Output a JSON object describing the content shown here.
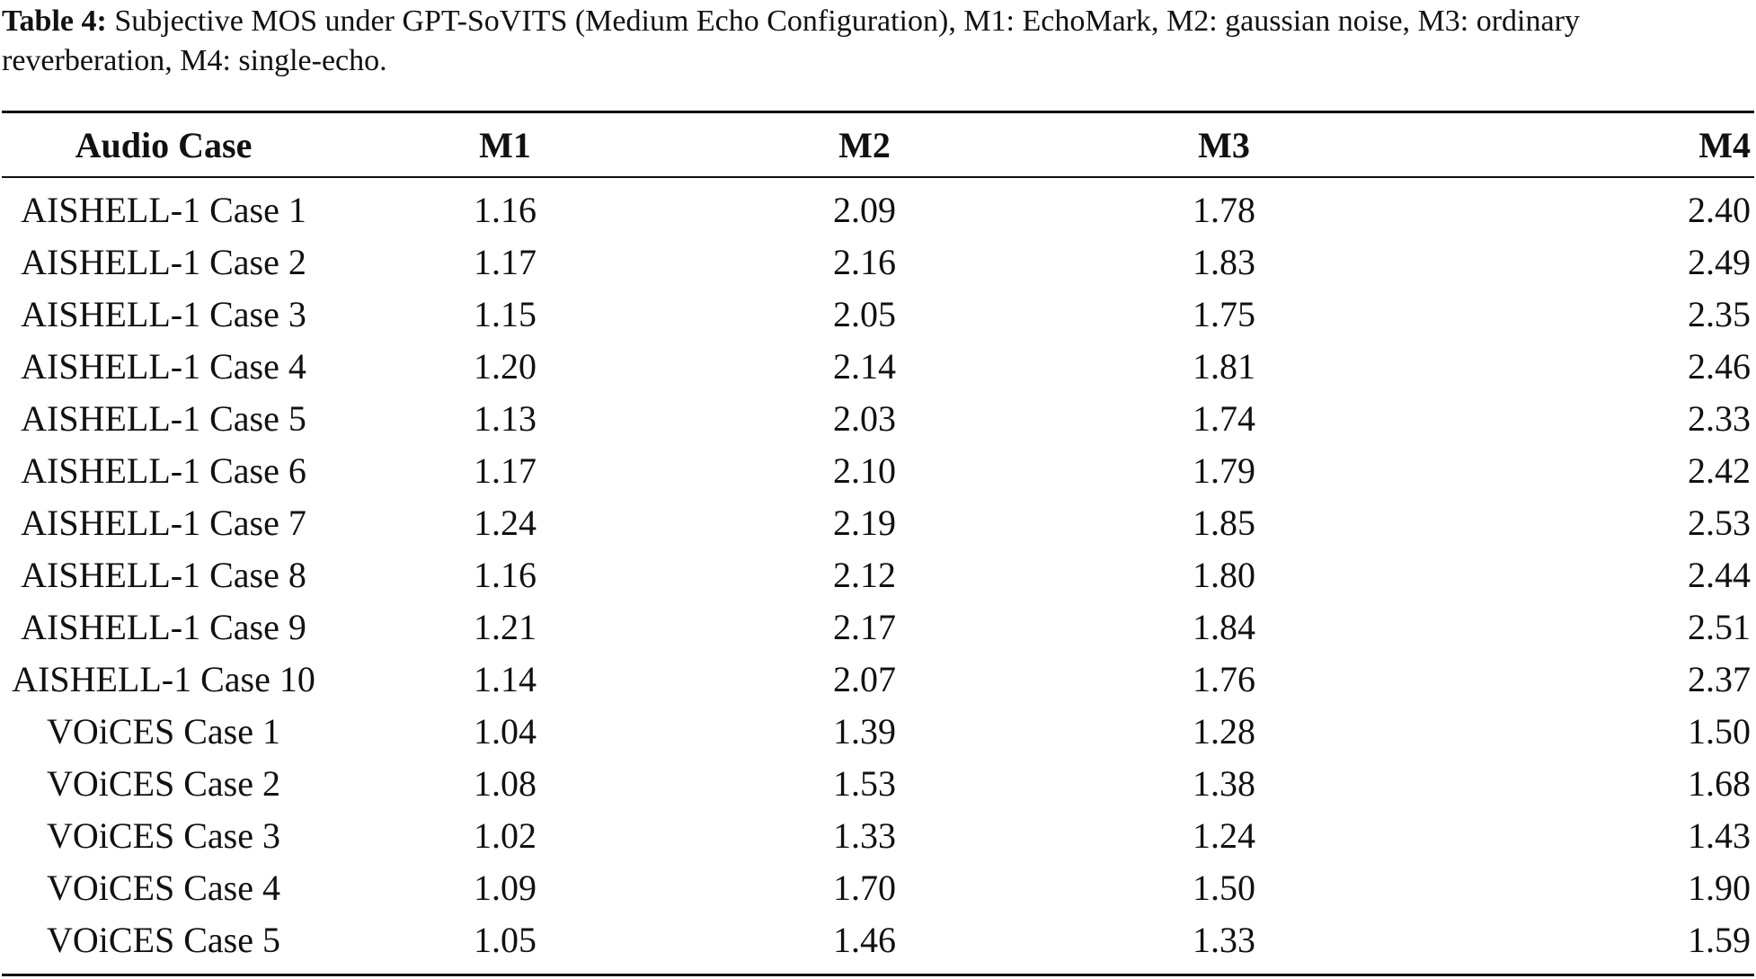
{
  "caption": {
    "label": "Table 4:",
    "text": "Subjective MOS under GPT-SoVITS (Medium Echo Configuration), M1: EchoMark, M2: gaussian noise, M3: ordinary reverberation, M4: single-echo."
  },
  "table": {
    "headers": [
      "Audio Case",
      "M1",
      "M2",
      "M3",
      "M4"
    ],
    "rows": [
      [
        "AISHELL-1 Case 1",
        "1.16",
        "2.09",
        "1.78",
        "2.40"
      ],
      [
        "AISHELL-1 Case 2",
        "1.17",
        "2.16",
        "1.83",
        "2.49"
      ],
      [
        "AISHELL-1 Case 3",
        "1.15",
        "2.05",
        "1.75",
        "2.35"
      ],
      [
        "AISHELL-1 Case 4",
        "1.20",
        "2.14",
        "1.81",
        "2.46"
      ],
      [
        "AISHELL-1 Case 5",
        "1.13",
        "2.03",
        "1.74",
        "2.33"
      ],
      [
        "AISHELL-1 Case 6",
        "1.17",
        "2.10",
        "1.79",
        "2.42"
      ],
      [
        "AISHELL-1 Case 7",
        "1.24",
        "2.19",
        "1.85",
        "2.53"
      ],
      [
        "AISHELL-1 Case 8",
        "1.16",
        "2.12",
        "1.80",
        "2.44"
      ],
      [
        "AISHELL-1 Case 9",
        "1.21",
        "2.17",
        "1.84",
        "2.51"
      ],
      [
        "AISHELL-1 Case 10",
        "1.14",
        "2.07",
        "1.76",
        "2.37"
      ],
      [
        "VOiCES Case 1",
        "1.04",
        "1.39",
        "1.28",
        "1.50"
      ],
      [
        "VOiCES Case 2",
        "1.08",
        "1.53",
        "1.38",
        "1.68"
      ],
      [
        "VOiCES Case 3",
        "1.02",
        "1.33",
        "1.24",
        "1.43"
      ],
      [
        "VOiCES Case 4",
        "1.09",
        "1.70",
        "1.50",
        "1.90"
      ],
      [
        "VOiCES Case 5",
        "1.05",
        "1.46",
        "1.33",
        "1.59"
      ]
    ]
  }
}
